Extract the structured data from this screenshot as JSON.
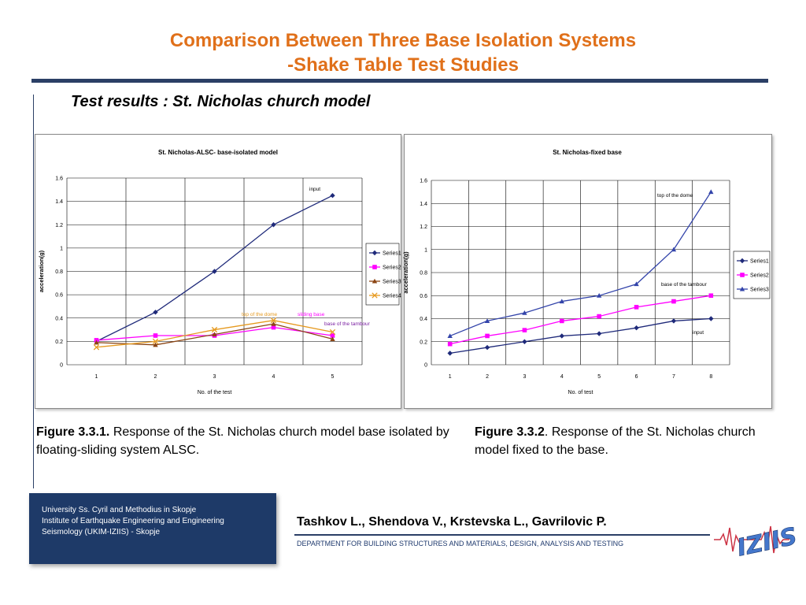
{
  "slide": {
    "title_line1": "Comparison Between Three Base Isolation Systems",
    "title_line2": "-Shake Table Test Studies",
    "subtitle": "Test results : St. Nicholas church model",
    "caption_a_label": "Figure 3.3.1.",
    "caption_a_text": " Response of the St. Nicholas church model base isolated by floating-sliding system ALSC.",
    "caption_b_label": "Figure 3.3.2",
    "caption_b_text": ". Response of the St. Nicholas church model fixed  to the base.",
    "institution_line1": "University Ss. Cyril and Methodius in Skopje",
    "institution_line2": "Institute of Earthquake Engineering and Engineering",
    "institution_line3": "Seismology (UKIM-IZIIS) - Skopje",
    "authors": "Tashkov L., Shendova V., Krstevska L., Gavrilovic P.",
    "department": "DEPARTMENT FOR BUILDING STRUCTURES AND MATERIALS, DESIGN, ANALYSIS AND TESTING",
    "logo_text": "IZIIS",
    "colors": {
      "title": "#e0701a",
      "rule": "#2b3f66",
      "footer_box": "#1e3a68",
      "series1": "#1f2a7a",
      "series2": "#ff00ff",
      "series3": "#8b4513",
      "series4": "#33aa33",
      "series3_fixed": "#3344aa",
      "orange": "#e69a20",
      "annotation_purple": "#7a1fa2",
      "logo_red": "#cc3344",
      "logo_blue": "#4477cc"
    }
  },
  "chart_data": [
    {
      "type": "line",
      "title": "St. Nicholas-ALSC- base-isolated model",
      "xlabel": "No. of the test",
      "ylabel": "acceleration(g)",
      "categories": [
        "1",
        "2",
        "3",
        "4",
        "5"
      ],
      "ylim": [
        0,
        1.6
      ],
      "yticks": [
        "0",
        "0.2",
        "0.4",
        "0.6",
        "0.8",
        "1",
        "1.2",
        "1.4",
        "1.6"
      ],
      "grid": true,
      "legend": "right",
      "series": [
        {
          "name": "Series1",
          "values": [
            0.2,
            0.45,
            0.8,
            1.2,
            1.45
          ],
          "color": "#1f2a7a",
          "marker": "diamond"
        },
        {
          "name": "Series2",
          "values": [
            0.21,
            0.25,
            0.25,
            0.32,
            0.25
          ],
          "color": "#ff00ff",
          "marker": "square"
        },
        {
          "name": "Series3",
          "values": [
            0.19,
            0.17,
            0.26,
            0.35,
            0.22
          ],
          "color": "#8b4513",
          "marker": "triangle"
        },
        {
          "name": "Series4",
          "values": [
            0.15,
            0.2,
            0.3,
            0.38,
            0.28
          ],
          "color": "#e69a20",
          "marker": "x"
        }
      ],
      "annotations": [
        {
          "text": "input",
          "color": "#000000"
        },
        {
          "text": "top of the dome",
          "color": "#e69a20"
        },
        {
          "text": "sliding base",
          "color": "#ff00ff"
        },
        {
          "text": "base of the tambour",
          "color": "#7a1fa2"
        }
      ]
    },
    {
      "type": "line",
      "title": "St. Nicholas-fixed base",
      "xlabel": "No. of test",
      "ylabel": "acceleration(g)",
      "categories": [
        "1",
        "2",
        "3",
        "4",
        "5",
        "6",
        "7",
        "8"
      ],
      "ylim": [
        0,
        1.6
      ],
      "yticks": [
        "0",
        "0.2",
        "0.4",
        "0.6",
        "0.8",
        "1",
        "1.2",
        "1.4",
        "1.6"
      ],
      "grid": true,
      "legend": "right",
      "series": [
        {
          "name": "Series1",
          "values": [
            0.1,
            0.15,
            0.2,
            0.25,
            0.27,
            0.32,
            0.38,
            0.4
          ],
          "color": "#1f2a7a",
          "marker": "diamond"
        },
        {
          "name": "Series2",
          "values": [
            0.18,
            0.25,
            0.3,
            0.38,
            0.42,
            0.5,
            0.55,
            0.6
          ],
          "color": "#ff00ff",
          "marker": "square"
        },
        {
          "name": "Series3",
          "values": [
            0.25,
            0.38,
            0.45,
            0.55,
            0.6,
            0.7,
            1.0,
            1.5
          ],
          "color": "#3344aa",
          "marker": "triangle"
        }
      ],
      "annotations": [
        {
          "text": "top of the dome",
          "color": "#000000"
        },
        {
          "text": "base of the tambour",
          "color": "#000000"
        },
        {
          "text": "input",
          "color": "#000000"
        }
      ]
    }
  ]
}
